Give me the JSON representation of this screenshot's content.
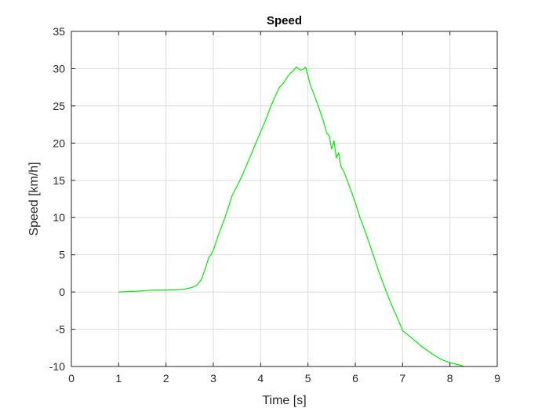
{
  "chart_data": {
    "type": "line",
    "title": "Speed",
    "xlabel": "Time [s]",
    "ylabel": "Speed [km/h]",
    "xlim": [
      0,
      9
    ],
    "ylim": [
      -10,
      35
    ],
    "xticks": [
      0,
      1,
      2,
      3,
      4,
      5,
      6,
      7,
      8,
      9
    ],
    "yticks": [
      -10,
      -5,
      0,
      5,
      10,
      15,
      20,
      25,
      30,
      35
    ],
    "grid": true,
    "legend": "none",
    "colors": {
      "line": "#00ee00",
      "grid": "#dcdcdc",
      "axis": "#262626"
    },
    "series": [
      {
        "x": [
          1.0,
          1.2,
          1.4,
          1.6,
          1.8,
          2.0,
          2.2,
          2.4,
          2.55,
          2.65,
          2.75,
          2.85,
          2.9,
          2.95,
          3.0,
          3.1,
          3.2,
          3.3,
          3.4,
          3.5,
          3.6,
          3.7,
          3.8,
          3.9,
          4.0,
          4.1,
          4.2,
          4.3,
          4.4,
          4.5,
          4.6,
          4.7,
          4.75,
          4.8,
          4.85,
          4.9,
          4.95,
          5.0,
          5.05,
          5.1,
          5.2,
          5.3,
          5.4,
          5.45,
          5.5,
          5.55,
          5.6,
          5.65,
          5.7,
          5.75,
          5.8,
          5.9,
          6.0,
          6.1,
          6.2,
          6.3,
          6.4,
          6.5,
          6.6,
          6.7,
          6.8,
          6.9,
          7.0,
          7.2,
          7.4,
          7.6,
          7.8,
          8.0,
          8.2,
          8.3
        ],
        "y": [
          0.0,
          0.05,
          0.1,
          0.2,
          0.25,
          0.25,
          0.3,
          0.4,
          0.6,
          0.9,
          1.7,
          3.5,
          4.6,
          5.0,
          5.6,
          7.5,
          9.2,
          11.0,
          13.0,
          14.2,
          15.5,
          17.0,
          18.5,
          20.0,
          21.5,
          23.0,
          24.7,
          26.2,
          27.5,
          28.2,
          29.2,
          29.8,
          30.2,
          30.0,
          29.8,
          29.9,
          30.2,
          29.0,
          27.8,
          27.0,
          25.3,
          23.5,
          21.3,
          21.0,
          19.2,
          20.3,
          18.0,
          18.7,
          16.8,
          16.3,
          15.5,
          13.8,
          12.0,
          10.0,
          8.3,
          6.5,
          4.6,
          2.7,
          1.0,
          -0.7,
          -2.2,
          -3.6,
          -5.2,
          -6.2,
          -7.3,
          -8.2,
          -9.0,
          -9.5,
          -9.8,
          -10.0
        ]
      }
    ]
  }
}
